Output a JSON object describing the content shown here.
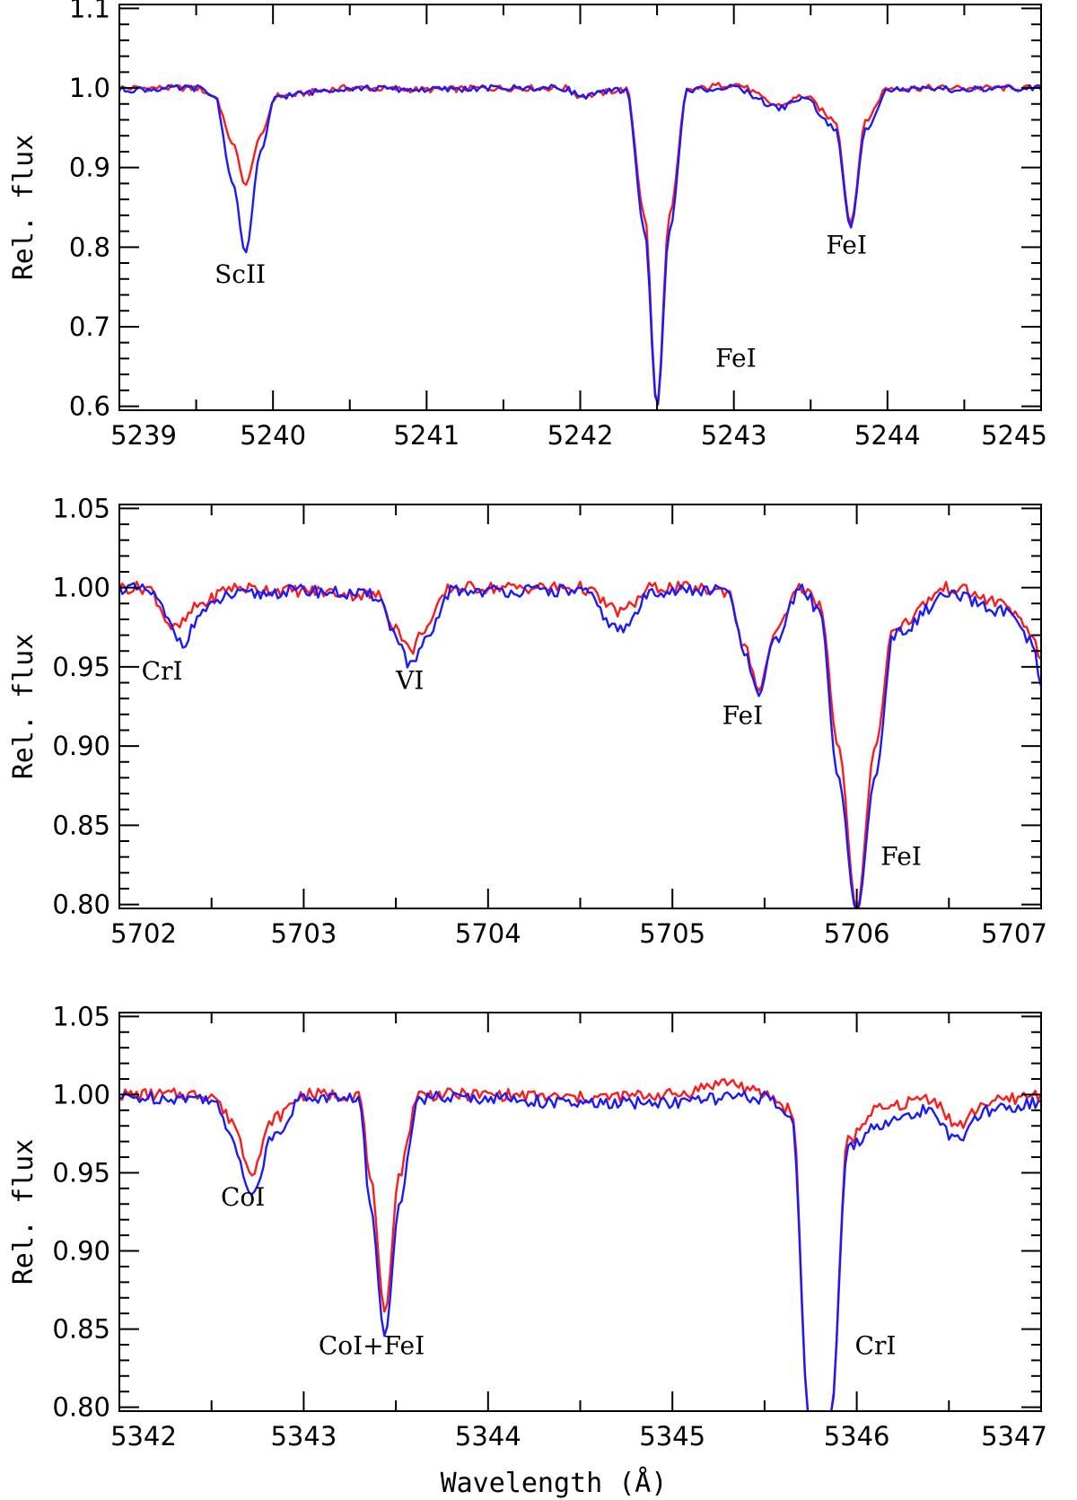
{
  "colors": {
    "series_a": "#ff1a1a",
    "series_b": "#1a1aff",
    "axes": "#000000"
  },
  "chart_data": [
    {
      "type": "line",
      "xlabel": "",
      "ylabel": "Rel. flux",
      "xlim": [
        5239,
        5245
      ],
      "ylim": [
        0.595,
        1.105
      ],
      "xticks": [
        5239,
        5240,
        5241,
        5242,
        5243,
        5244,
        5245
      ],
      "xtick_labels": [
        "5239",
        "5240",
        "5241",
        "5242",
        "5243",
        "5244",
        "5245"
      ],
      "yticks": [
        0.6,
        0.7,
        0.8,
        0.9,
        1.0,
        1.1
      ],
      "ytick_labels": [
        "0.6",
        "0.7",
        "0.8",
        "0.9",
        "1.0",
        "1.1"
      ],
      "series": [
        {
          "color": "#ff1a1a",
          "continuum": 1.0,
          "x": [
            5239.0,
            5239.5,
            5239.62,
            5239.74,
            5239.82,
            5239.92,
            5240.02,
            5240.5,
            5241.0,
            5241.5,
            5241.9,
            5242.0,
            5242.3,
            5242.42,
            5242.5,
            5242.58,
            5242.7,
            5243.0,
            5243.3,
            5243.45,
            5243.66,
            5243.76,
            5243.86,
            5244.0,
            5244.5,
            5245.0
          ],
          "y": [
            1.0,
            1.0,
            0.99,
            0.93,
            0.878,
            0.94,
            0.99,
            1.0,
            0.998,
            1.0,
            1.0,
            0.99,
            0.998,
            0.84,
            0.6,
            0.84,
            0.998,
            1.005,
            0.978,
            0.99,
            0.96,
            0.83,
            0.96,
            1.0,
            1.0,
            1.0
          ]
        },
        {
          "color": "#1a1aff",
          "continuum": 1.0,
          "x": [
            5239.0,
            5239.5,
            5239.62,
            5239.74,
            5239.82,
            5239.92,
            5240.02,
            5240.5,
            5241.0,
            5241.5,
            5241.9,
            5242.0,
            5242.3,
            5242.42,
            5242.5,
            5242.58,
            5242.7,
            5243.0,
            5243.3,
            5243.45,
            5243.66,
            5243.76,
            5243.86,
            5244.0,
            5244.5,
            5245.0
          ],
          "y": [
            0.998,
            1.0,
            0.99,
            0.88,
            0.792,
            0.92,
            0.99,
            1.0,
            0.998,
            1.0,
            1.0,
            0.99,
            0.998,
            0.82,
            0.598,
            0.82,
            0.998,
            1.0,
            0.975,
            0.988,
            0.95,
            0.825,
            0.95,
            0.998,
            0.998,
            1.0
          ]
        }
      ],
      "annotations": [
        {
          "text": "ScII",
          "x": 5239.62,
          "y": 0.755
        },
        {
          "text": "FeI",
          "x": 5242.88,
          "y": 0.65
        },
        {
          "text": "FeI",
          "x": 5243.6,
          "y": 0.792
        }
      ]
    },
    {
      "type": "line",
      "xlabel": "",
      "ylabel": "Rel. flux",
      "xlim": [
        5702,
        5707
      ],
      "ylim": [
        0.7975,
        1.0525
      ],
      "xticks": [
        5702,
        5703,
        5704,
        5705,
        5706,
        5707
      ],
      "xtick_labels": [
        "5702",
        "5703",
        "5704",
        "5705",
        "5706",
        "5707"
      ],
      "yticks": [
        0.8,
        0.85,
        0.9,
        0.95,
        1.0,
        1.05
      ],
      "ytick_labels": [
        "0.80",
        "0.85",
        "0.90",
        "0.95",
        "1.00",
        "1.05"
      ],
      "series": [
        {
          "color": "#ff1a1a",
          "continuum": 1.0,
          "x": [
            5702.0,
            5702.15,
            5702.3,
            5702.45,
            5702.6,
            5703.0,
            5703.4,
            5703.5,
            5703.58,
            5703.66,
            5703.8,
            5704.0,
            5704.5,
            5704.72,
            5704.9,
            5705.0,
            5705.3,
            5705.4,
            5705.47,
            5705.55,
            5705.7,
            5705.8,
            5705.9,
            5706.0,
            5706.1,
            5706.2,
            5706.5,
            5706.8,
            5706.95,
            5707.0
          ],
          "y": [
            1.0,
            1.0,
            0.974,
            0.99,
            1.0,
            0.998,
            0.995,
            0.975,
            0.96,
            0.975,
            1.0,
            1.0,
            1.0,
            0.985,
            1.0,
            1.0,
            0.998,
            0.96,
            0.935,
            0.97,
            1.0,
            0.99,
            0.9,
            0.796,
            0.9,
            0.975,
            1.0,
            0.99,
            0.97,
            0.955
          ]
        },
        {
          "color": "#1a1aff",
          "continuum": 0.998,
          "x": [
            5702.0,
            5702.15,
            5702.35,
            5702.45,
            5702.6,
            5703.0,
            5703.4,
            5703.5,
            5703.58,
            5703.66,
            5703.8,
            5704.0,
            5704.5,
            5704.72,
            5704.9,
            5705.0,
            5705.3,
            5705.4,
            5705.47,
            5705.55,
            5705.7,
            5705.8,
            5705.9,
            5706.0,
            5706.1,
            5706.2,
            5706.5,
            5706.8,
            5706.95,
            5707.0
          ],
          "y": [
            1.0,
            0.998,
            0.966,
            0.985,
            0.995,
            0.998,
            0.995,
            0.97,
            0.95,
            0.965,
            0.998,
            0.998,
            0.998,
            0.973,
            0.998,
            0.998,
            0.998,
            0.955,
            0.932,
            0.965,
            1.0,
            0.985,
            0.88,
            0.794,
            0.88,
            0.97,
            0.995,
            0.985,
            0.965,
            0.938
          ]
        }
      ],
      "annotations": [
        {
          "text": "CrI",
          "x": 5702.12,
          "y": 0.942
        },
        {
          "text": "VI",
          "x": 5703.5,
          "y": 0.936
        },
        {
          "text": "FeI",
          "x": 5705.27,
          "y": 0.914
        },
        {
          "text": "FeI",
          "x": 5706.13,
          "y": 0.825
        }
      ]
    },
    {
      "type": "line",
      "xlabel": "Wavelength (Å)",
      "ylabel": "Rel. flux",
      "xlim": [
        5342,
        5347
      ],
      "ylim": [
        0.7975,
        1.0525
      ],
      "xticks": [
        5342,
        5343,
        5344,
        5345,
        5346,
        5347
      ],
      "xtick_labels": [
        "5342",
        "5343",
        "5344",
        "5345",
        "5346",
        "5347"
      ],
      "yticks": [
        0.8,
        0.85,
        0.9,
        0.95,
        1.0,
        1.05
      ],
      "ytick_labels": [
        "0.80",
        "0.85",
        "0.90",
        "0.95",
        "1.00",
        "1.05"
      ],
      "series": [
        {
          "color": "#ff1a1a",
          "continuum": 1.0,
          "x": [
            5342.0,
            5342.5,
            5342.6,
            5342.72,
            5342.84,
            5343.0,
            5343.3,
            5343.36,
            5343.44,
            5343.52,
            5343.62,
            5344.0,
            5344.5,
            5345.0,
            5345.3,
            5345.5,
            5345.65,
            5345.74,
            5345.86,
            5345.95,
            5346.1,
            5346.4,
            5346.55,
            5346.7,
            5347.0
          ],
          "y": [
            1.0,
            1.0,
            0.985,
            0.952,
            0.985,
            1.0,
            1.0,
            0.95,
            0.86,
            0.95,
            1.0,
            1.0,
            0.998,
            1.0,
            1.008,
            1.0,
            0.99,
            0.796,
            0.796,
            0.97,
            0.99,
            0.998,
            0.98,
            0.995,
            1.0
          ]
        },
        {
          "color": "#1a1aff",
          "continuum": 0.997,
          "x": [
            5342.0,
            5342.5,
            5342.6,
            5342.72,
            5342.84,
            5343.0,
            5343.3,
            5343.36,
            5343.44,
            5343.52,
            5343.62,
            5344.0,
            5344.5,
            5345.0,
            5345.3,
            5345.5,
            5345.65,
            5345.74,
            5345.86,
            5345.95,
            5346.1,
            5346.4,
            5346.55,
            5346.7,
            5347.0
          ],
          "y": [
            0.998,
            0.998,
            0.975,
            0.936,
            0.975,
            0.998,
            0.998,
            0.93,
            0.846,
            0.93,
            0.998,
            0.998,
            0.994,
            0.995,
            0.998,
            0.998,
            0.985,
            0.795,
            0.795,
            0.965,
            0.98,
            0.99,
            0.97,
            0.99,
            0.995
          ]
        }
      ],
      "annotations": [
        {
          "text": "CoI",
          "x": 5342.55,
          "y": 0.929
        },
        {
          "text": "CoI+FeI",
          "x": 5343.08,
          "y": 0.834
        },
        {
          "text": "CrI",
          "x": 5345.99,
          "y": 0.834
        }
      ]
    }
  ]
}
